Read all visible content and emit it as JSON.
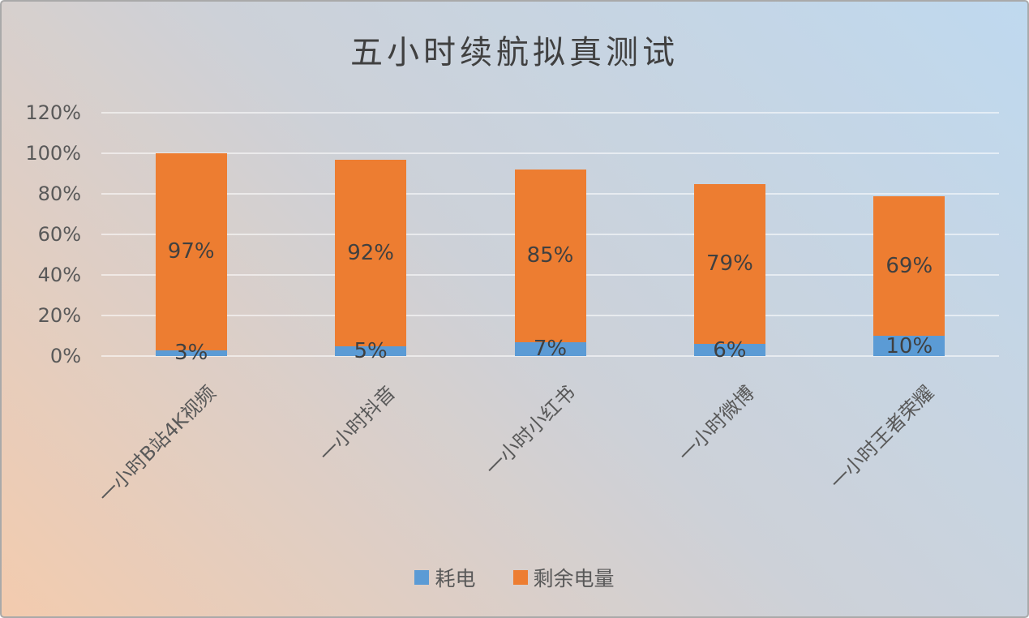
{
  "chart_data": {
    "type": "bar",
    "stacked": true,
    "title": "五小时续航拟真测试",
    "categories": [
      "一小时B站4K视频",
      "一小时抖音",
      "一小时小红书",
      "一小时微博",
      "一小时王者荣耀"
    ],
    "series": [
      {
        "name": "耗电",
        "color": "#5B9BD5",
        "values": [
          3,
          5,
          7,
          6,
          10
        ]
      },
      {
        "name": "剩余电量",
        "color": "#ED7D31",
        "values": [
          97,
          92,
          85,
          79,
          69
        ]
      }
    ],
    "data_label_suffix": "%",
    "y_axis": {
      "min": 0,
      "max": 120,
      "step": 20,
      "tick_labels": [
        "0%",
        "20%",
        "40%",
        "60%",
        "80%",
        "100%",
        "120%"
      ]
    },
    "x_label_rotation_deg": -45,
    "grid": true,
    "legend_position": "bottom",
    "colors": {
      "background_gradient": [
        "#f3cbae",
        "#cdd1d8",
        "#bfd9ef"
      ],
      "frame_border": "#a9a9a9",
      "title_text": "#404040",
      "axis_text": "#595959",
      "data_label_text": "#404040",
      "gridline": "rgba(255,255,255,0.55)"
    }
  }
}
